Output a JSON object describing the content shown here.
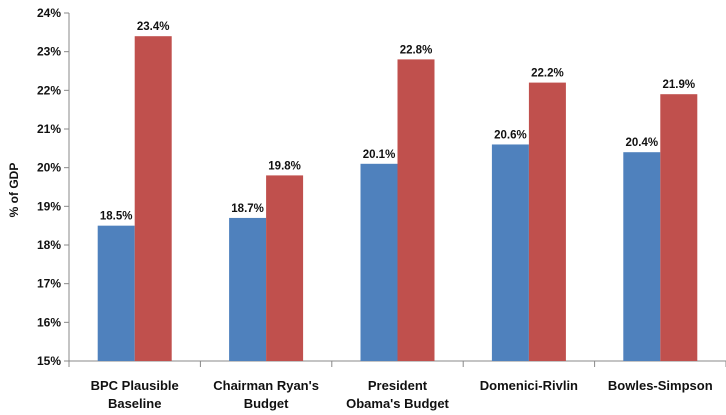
{
  "chart_data": {
    "type": "bar",
    "ylabel": "% of GDP",
    "ylim": [
      15,
      24
    ],
    "ytick_labels": [
      "15%",
      "16%",
      "17%",
      "18%",
      "19%",
      "20%",
      "21%",
      "22%",
      "23%",
      "24%"
    ],
    "categories": [
      [
        "BPC Plausible",
        "Baseline"
      ],
      [
        "Chairman Ryan's",
        "Budget"
      ],
      [
        "President",
        "Obama's Budget"
      ],
      [
        "Domenici-Rivlin"
      ],
      [
        "Bowles-Simpson"
      ]
    ],
    "series": [
      {
        "values": [
          18.5,
          18.7,
          20.1,
          20.6,
          20.4
        ],
        "labels": [
          "18.5%",
          "18.7%",
          "20.1%",
          "20.6%",
          "20.4%"
        ],
        "color": "#4f81bd"
      },
      {
        "values": [
          23.4,
          19.8,
          22.8,
          22.2,
          21.9
        ],
        "labels": [
          "23.4%",
          "19.8%",
          "22.8%",
          "22.2%",
          "21.9%"
        ],
        "color": "#c0504d"
      }
    ],
    "grid": false,
    "legend": "none"
  }
}
